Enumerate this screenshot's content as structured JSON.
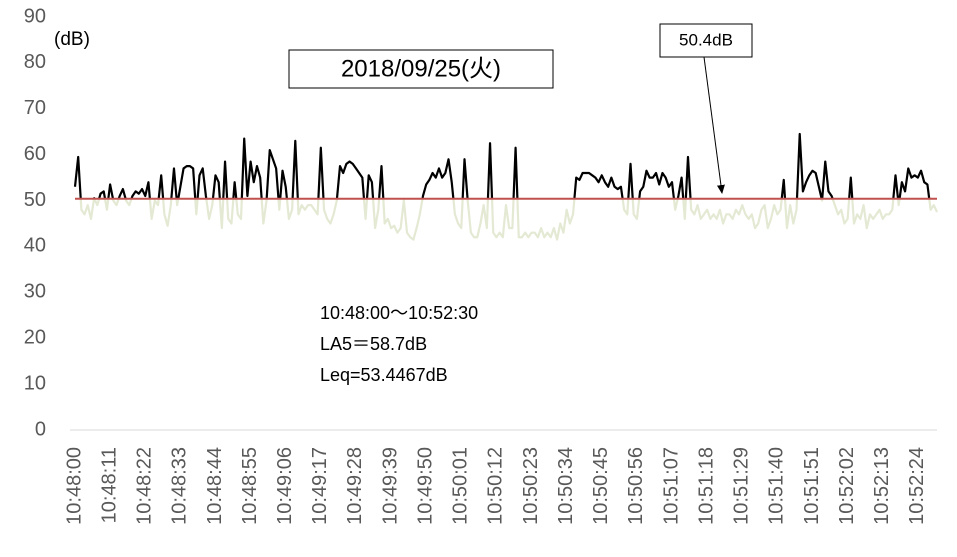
{
  "chart_data": {
    "type": "line",
    "title": "2018/09/25(火)",
    "ylabel": "(dB)",
    "annotations": [
      "10:48:00～10:52:30",
      "LA5＝58.7dB",
      "Leq=53.4467dB"
    ],
    "threshold": {
      "value": 50.4,
      "label": "50.4dB",
      "color": "#c0504d"
    },
    "color": "#000000",
    "below_color": "#e4e9d4",
    "ylim": [
      0,
      90
    ],
    "yticks": [
      0,
      10,
      20,
      30,
      40,
      50,
      60,
      70,
      80,
      90
    ],
    "categories": [
      "10:48:00",
      null,
      null,
      null,
      null,
      null,
      null,
      null,
      null,
      null,
      null,
      "10:48:11",
      null,
      null,
      null,
      null,
      null,
      null,
      null,
      null,
      null,
      null,
      "10:48:22",
      null,
      null,
      null,
      null,
      null,
      null,
      null,
      null,
      null,
      null,
      "10:48:33",
      null,
      null,
      null,
      null,
      null,
      null,
      null,
      null,
      null,
      null,
      "10:48:44",
      null,
      null,
      null,
      null,
      null,
      null,
      null,
      null,
      null,
      null,
      "10:48:55",
      null,
      null,
      null,
      null,
      null,
      null,
      null,
      null,
      null,
      null,
      "10:49:06",
      null,
      null,
      null,
      null,
      null,
      null,
      null,
      null,
      null,
      null,
      "10:49:17",
      null,
      null,
      null,
      null,
      null,
      null,
      null,
      null,
      null,
      null,
      "10:49:28",
      null,
      null,
      null,
      null,
      null,
      null,
      null,
      null,
      null,
      null,
      "10:49:39",
      null,
      null,
      null,
      null,
      null,
      null,
      null,
      null,
      null,
      null,
      "10:49:50",
      null,
      null,
      null,
      null,
      null,
      null,
      null,
      null,
      null,
      null,
      "10:50:01",
      null,
      null,
      null,
      null,
      null,
      null,
      null,
      null,
      null,
      null,
      "10:50:12",
      null,
      null,
      null,
      null,
      null,
      null,
      null,
      null,
      null,
      null,
      "10:50:23",
      null,
      null,
      null,
      null,
      null,
      null,
      null,
      null,
      null,
      null,
      "10:50:34",
      null,
      null,
      null,
      null,
      null,
      null,
      null,
      null,
      null,
      null,
      "10:50:45",
      null,
      null,
      null,
      null,
      null,
      null,
      null,
      null,
      null,
      null,
      "10:50:56",
      null,
      null,
      null,
      null,
      null,
      null,
      null,
      null,
      null,
      null,
      "10:51:07",
      null,
      null,
      null,
      null,
      null,
      null,
      null,
      null,
      null,
      null,
      "10:51:18",
      null,
      null,
      null,
      null,
      null,
      null,
      null,
      null,
      null,
      null,
      "10:51:29",
      null,
      null,
      null,
      null,
      null,
      null,
      null,
      null,
      null,
      null,
      "10:51:40",
      null,
      null,
      null,
      null,
      null,
      null,
      null,
      null,
      null,
      null,
      "10:51:51",
      null,
      null,
      null,
      null,
      null,
      null,
      null,
      null,
      null,
      null,
      "10:52:02",
      null,
      null,
      null,
      null,
      null,
      null,
      null,
      null,
      null,
      null,
      "10:52:13",
      null,
      null,
      null,
      null,
      null,
      null,
      null,
      null,
      null,
      null,
      "10:52:24",
      null,
      null,
      null,
      null,
      null,
      null
    ],
    "values": [
      53,
      59.5,
      48,
      47,
      49,
      46,
      50.5,
      49,
      51.5,
      52,
      48,
      53.5,
      50,
      49,
      51,
      52.5,
      50,
      49,
      51,
      52,
      51.5,
      52.5,
      51,
      54,
      46,
      50,
      49,
      55.5,
      47,
      44.5,
      49,
      57,
      49,
      53,
      57,
      57.5,
      57.5,
      57,
      47,
      55.5,
      57,
      51,
      46,
      49,
      55.5,
      54,
      44,
      58.5,
      46,
      45,
      54,
      47,
      46,
      63.5,
      51,
      58.5,
      54,
      57.5,
      55,
      45,
      50,
      61,
      59,
      57,
      48,
      56.5,
      53,
      46,
      48,
      63,
      47,
      49,
      48,
      49,
      49,
      48,
      47,
      61.5,
      48,
      46,
      45,
      47,
      50,
      57.5,
      56,
      58,
      58.5,
      58,
      57,
      56,
      55,
      46,
      55.5,
      54,
      44,
      48,
      57.5,
      45,
      46,
      44,
      44.5,
      43,
      44,
      50,
      43,
      42,
      41.5,
      44,
      47,
      51,
      53.5,
      54.5,
      56,
      55,
      57,
      55,
      56,
      59,
      54,
      47,
      45,
      44,
      59,
      50,
      43,
      42,
      42,
      45,
      49,
      44,
      62.5,
      43,
      42,
      43,
      42,
      49,
      44,
      44,
      61.5,
      42,
      42,
      43,
      42,
      43,
      43,
      42,
      44,
      42,
      43,
      42,
      44,
      41.5,
      45,
      43,
      48,
      45,
      47,
      55,
      54.5,
      56,
      56,
      56,
      55.5,
      55,
      54,
      55.5,
      54,
      53,
      55,
      53,
      52.5,
      53,
      48,
      47,
      58,
      47,
      46,
      52,
      53,
      56.5,
      55,
      55,
      56,
      53.5,
      56,
      55,
      53,
      54,
      48,
      51,
      55,
      46,
      59.5,
      48,
      47,
      49,
      46,
      47,
      48,
      46,
      47,
      46,
      48,
      45,
      47,
      47,
      46,
      48,
      47,
      49,
      47,
      46,
      47,
      44,
      45,
      48,
      49,
      44,
      46,
      49,
      47,
      48,
      54.5,
      44,
      49,
      45,
      48,
      64.5,
      52,
      54,
      55.5,
      56.5,
      56,
      53,
      50,
      58.5,
      52,
      51,
      49,
      47,
      48,
      45,
      46,
      55,
      45,
      47,
      46,
      49,
      44,
      47,
      46,
      47,
      48,
      46,
      47,
      47,
      48,
      55.5,
      49,
      54,
      52,
      57,
      55,
      55.5,
      55,
      56.5,
      54,
      53.5,
      48,
      49,
      47.5
    ]
  }
}
